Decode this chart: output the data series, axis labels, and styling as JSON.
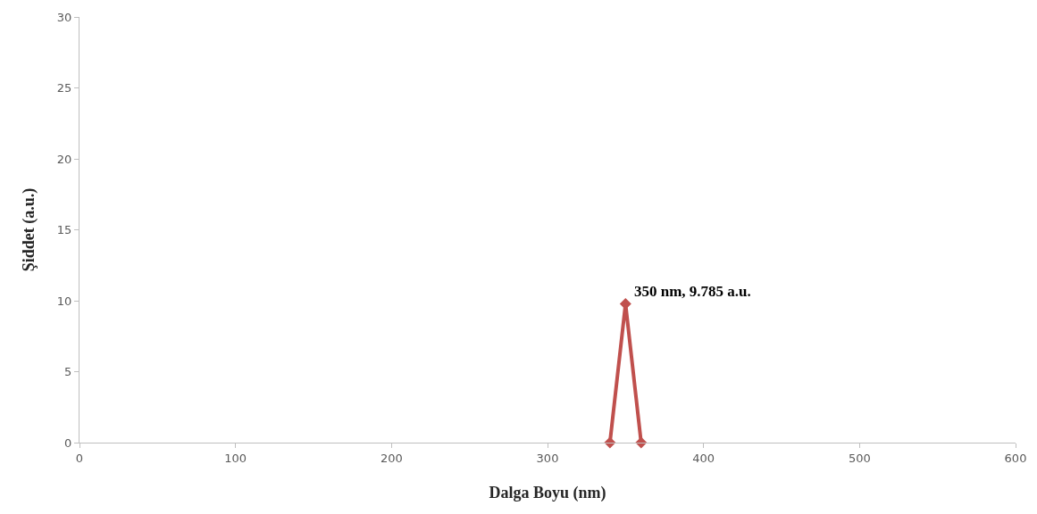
{
  "chart_data": {
    "type": "line",
    "xlabel": "Dalga Boyu (nm)",
    "ylabel": "Şiddet (a.u.)",
    "series": [
      {
        "color": "#c0504d",
        "x": [
          340,
          350,
          360
        ],
        "values": [
          0,
          9.785,
          0
        ]
      }
    ],
    "xlim": [
      0,
      600
    ],
    "xticks": [
      0,
      100,
      200,
      300,
      400,
      500,
      600
    ],
    "ylim": [
      0,
      30
    ],
    "yticks": [
      0,
      5,
      10,
      15,
      20,
      25,
      30
    ],
    "marker": "diamond",
    "legend": false,
    "annotations": [
      {
        "text": "350 nm, 9.785 a.u.",
        "x": 350,
        "y": 9.785
      }
    ]
  }
}
